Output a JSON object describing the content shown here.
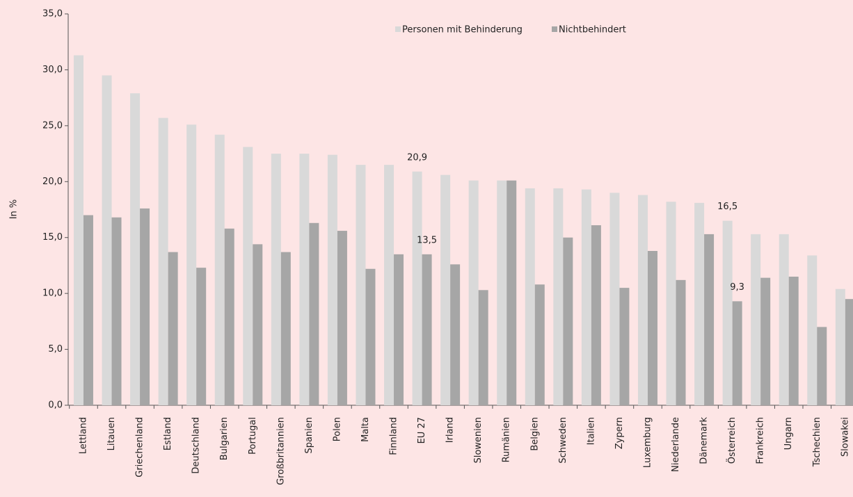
{
  "chart_data": {
    "type": "bar",
    "ylabel": "In %",
    "categories": [
      "Lettland",
      "Litauen",
      "Griechenland",
      "Estland",
      "Deutschland",
      "Bulgarien",
      "Portugal",
      "Großbritannien",
      "Spanien",
      "Polen",
      "Malta",
      "Finnland",
      "EU 27",
      "Irland",
      "Slowenien",
      "Rumänien",
      "Belgien",
      "Schweden",
      "Italien",
      "Zypern",
      "Luxemburg",
      "Niederlande",
      "Dänemark",
      "Österreich",
      "Frankreich",
      "Ungarn",
      "Tschechien",
      "Slowakei"
    ],
    "series": [
      {
        "name": "Personen mit Behinderung",
        "color": "#d9d9d9",
        "values": [
          31.3,
          29.5,
          27.9,
          25.7,
          25.1,
          24.2,
          23.1,
          22.5,
          22.5,
          22.4,
          21.5,
          21.5,
          20.9,
          20.6,
          20.1,
          20.1,
          19.4,
          19.4,
          19.3,
          19.0,
          18.8,
          18.2,
          18.1,
          16.5,
          15.3,
          15.3,
          13.4,
          10.4
        ],
        "value_labels": [
          null,
          null,
          null,
          null,
          null,
          null,
          null,
          null,
          null,
          null,
          null,
          null,
          "20,9",
          null,
          null,
          null,
          null,
          null,
          null,
          null,
          null,
          null,
          null,
          "16,5",
          null,
          null,
          null,
          null
        ]
      },
      {
        "name": "Nichtbehindert",
        "color": "#a6a6a6",
        "values": [
          17.0,
          16.8,
          17.6,
          13.7,
          12.3,
          15.8,
          14.4,
          13.7,
          16.3,
          15.6,
          12.2,
          13.5,
          13.5,
          12.6,
          10.3,
          20.1,
          10.8,
          15.0,
          16.1,
          10.5,
          13.8,
          11.2,
          15.3,
          9.3,
          11.4,
          11.5,
          7.0,
          9.5
        ],
        "value_labels": [
          null,
          null,
          null,
          null,
          null,
          null,
          null,
          null,
          null,
          null,
          null,
          null,
          "13,5",
          null,
          null,
          null,
          null,
          null,
          null,
          null,
          null,
          null,
          null,
          "9,3",
          null,
          null,
          null,
          null
        ]
      }
    ],
    "ylim": [
      0,
      35
    ],
    "yticks": [
      {
        "value": 0,
        "label": "0,0"
      },
      {
        "value": 5,
        "label": "5,0"
      },
      {
        "value": 10,
        "label": "10,0"
      },
      {
        "value": 15,
        "label": "15,0"
      },
      {
        "value": 20,
        "label": "20,0"
      },
      {
        "value": 25,
        "label": "25,0"
      },
      {
        "value": 30,
        "label": "30,0"
      },
      {
        "value": 35,
        "label": "35,0"
      }
    ],
    "grid": false
  }
}
